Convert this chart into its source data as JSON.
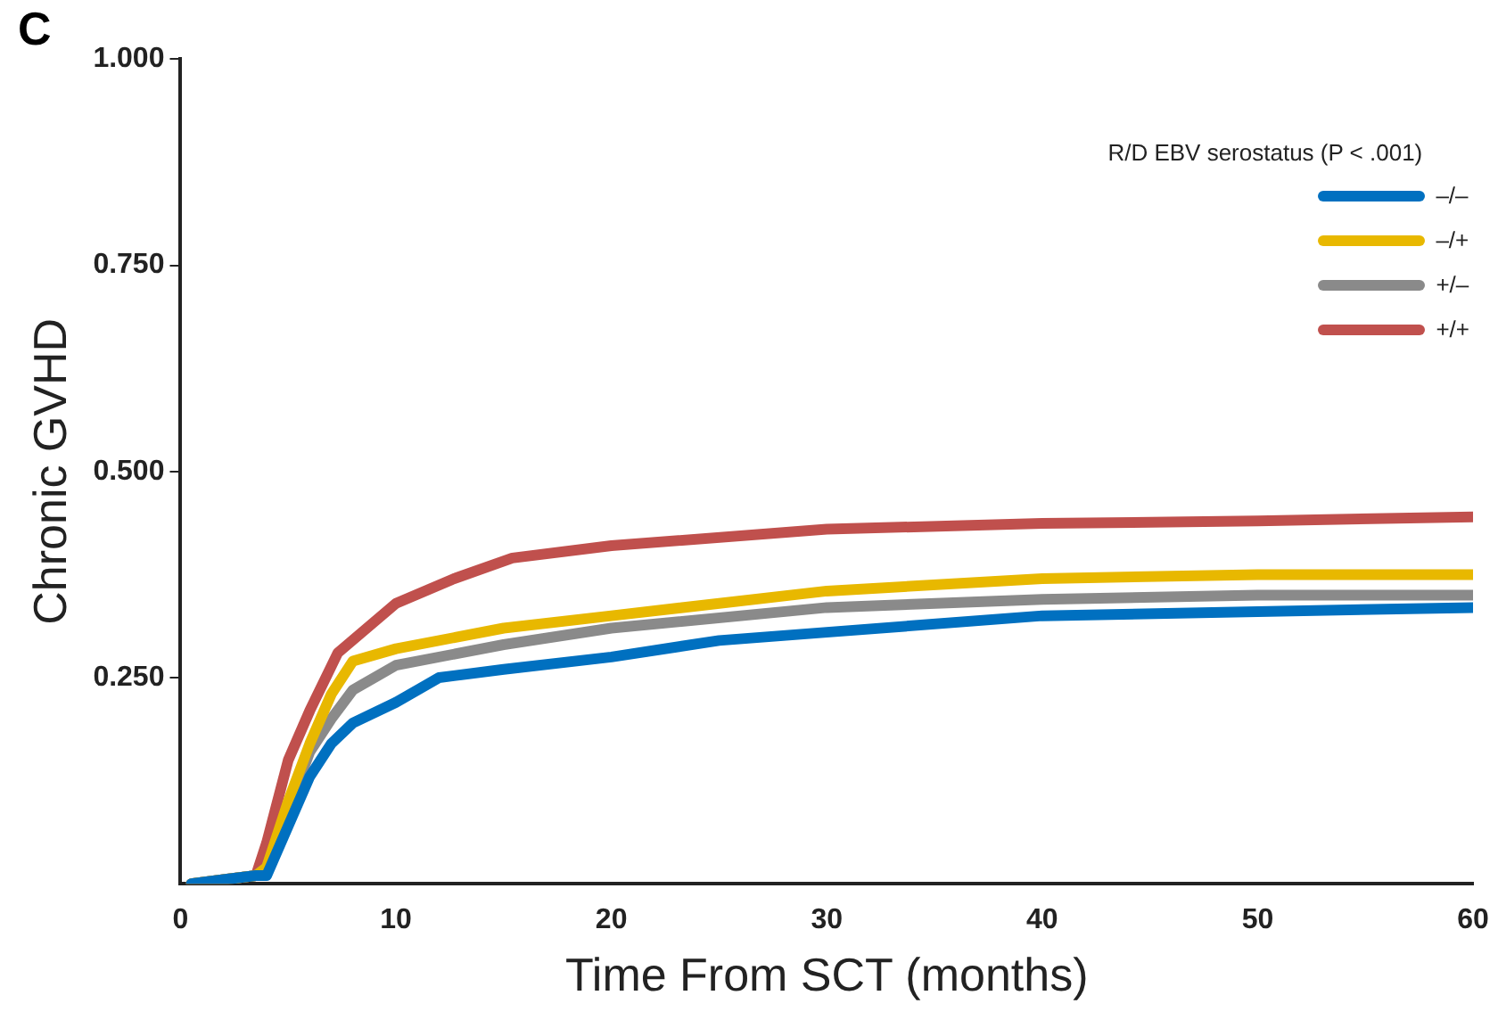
{
  "chart_data": {
    "type": "line",
    "title": "C",
    "xlabel": "Time From SCT (months)",
    "ylabel": "Chronic GVHD",
    "legend_title": "R/D EBV serostatus (P < .001)",
    "legend": "top right",
    "grid": false,
    "marker": "none",
    "line_style": "solid",
    "xlim": [
      0,
      60
    ],
    "xticks": [
      0,
      10,
      20,
      30,
      40,
      50,
      60
    ],
    "ylim": [
      0,
      1
    ],
    "yticks": [
      {
        "value": 0.25,
        "label": "0.250"
      },
      {
        "value": 0.5,
        "label": "0.500"
      },
      {
        "value": 0.75,
        "label": "0.750"
      },
      {
        "value": 1,
        "label": "1.000"
      }
    ],
    "series": [
      {
        "name": "–/–",
        "color": "#0070c0",
        "x": [
          0.5,
          3.5,
          4,
          5,
          6,
          7,
          8,
          10,
          12,
          15,
          20,
          25,
          30,
          40,
          50,
          60
        ],
        "values": [
          0,
          0.01,
          0.01,
          0.07,
          0.13,
          0.17,
          0.195,
          0.22,
          0.25,
          0.26,
          0.275,
          0.295,
          0.305,
          0.325,
          0.33,
          0.335
        ]
      },
      {
        "name": "–/+",
        "color": "#e8b800",
        "x": [
          0.5,
          3.5,
          4,
          5,
          6,
          7,
          8,
          10,
          15,
          20,
          30,
          40,
          50,
          60
        ],
        "values": [
          0,
          0.01,
          0.02,
          0.1,
          0.17,
          0.23,
          0.27,
          0.285,
          0.31,
          0.325,
          0.355,
          0.37,
          0.375,
          0.375
        ]
      },
      {
        "name": "+/–",
        "color": "#8a8a8a",
        "x": [
          0.5,
          3.5,
          4,
          5,
          6,
          7,
          8,
          10,
          15,
          20,
          30,
          40,
          50,
          60
        ],
        "values": [
          0,
          0.01,
          0.02,
          0.09,
          0.16,
          0.2,
          0.235,
          0.265,
          0.29,
          0.31,
          0.335,
          0.345,
          0.35,
          0.35
        ]
      },
      {
        "name": "+/+",
        "color": "#c0504d",
        "x": [
          0.5,
          3.5,
          4,
          5,
          6,
          7.3,
          10,
          12.7,
          15.4,
          20,
          30,
          40,
          50,
          60
        ],
        "values": [
          0,
          0.01,
          0.05,
          0.15,
          0.21,
          0.28,
          0.34,
          0.37,
          0.395,
          0.41,
          0.43,
          0.437,
          0.44,
          0.445
        ]
      }
    ]
  }
}
